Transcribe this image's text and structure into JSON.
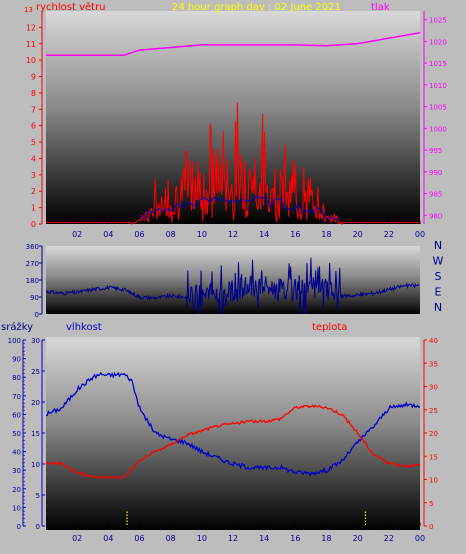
{
  "colors": {
    "background": "#bdbdbd",
    "wind": "#ff0000",
    "gust_avg": "#0000cc",
    "pressure": "#ff00ff",
    "direction": "#00008b",
    "humidity": "#0000cc",
    "temperature": "#ff0000",
    "rain_label": "#00008b",
    "humidity_label": "#0000cc",
    "rain_axis": "#0000cc",
    "yellow": "#ffff00",
    "tick_blue": "#0000aa"
  },
  "chart_data": [
    {
      "type": "line",
      "name_key": "wind_pressure",
      "title": "24 hour graph day : 02 June 2021",
      "left_label": "rychlost větru",
      "right_label": "tlak",
      "x_ticks": [
        "02",
        "04",
        "06",
        "08",
        "10",
        "12",
        "14",
        "16",
        "18",
        "20",
        "22",
        "00"
      ],
      "y_left_ticks": [
        0,
        1,
        2,
        3,
        4,
        5,
        6,
        7,
        8,
        9,
        10,
        11,
        12
      ],
      "y_left_top_tick": "13",
      "y_right_ticks": [
        980,
        985,
        990,
        995,
        1000,
        1005,
        1010,
        1015,
        1020,
        1025
      ],
      "ylim_left": [
        0,
        13
      ],
      "ylim_right": [
        978,
        1027
      ],
      "pressure": {
        "x": [
          0,
          5,
          6,
          10,
          16,
          18,
          20,
          24
        ],
        "y": [
          1016.8,
          1016.8,
          1018,
          1019.2,
          1019.2,
          1019,
          1019.5,
          1022
        ]
      },
      "wind_active_range": [
        5.5,
        19
      ]
    },
    {
      "type": "line",
      "name_key": "direction",
      "y_ticks": [
        0,
        90,
        180,
        270,
        360
      ],
      "compass": [
        "N",
        "W",
        "S",
        "E",
        "N"
      ],
      "ylim": [
        0,
        360
      ],
      "x": [
        0,
        1,
        2,
        3,
        4,
        5,
        6,
        7,
        8,
        9,
        10,
        11,
        12,
        13,
        14,
        15,
        16,
        17,
        18,
        19,
        20,
        21,
        22,
        23,
        24
      ],
      "y": [
        120,
        110,
        115,
        130,
        140,
        130,
        90,
        85,
        95,
        90,
        100,
        110,
        120,
        140,
        150,
        130,
        125,
        140,
        135,
        95,
        100,
        110,
        130,
        150,
        150
      ]
    },
    {
      "type": "line",
      "name_key": "humidity_temp",
      "rain_label": "srážky",
      "humidity_label": "vlhkost",
      "temp_label": "teplota",
      "x_ticks": [
        "02",
        "04",
        "06",
        "08",
        "10",
        "12",
        "14",
        "16",
        "18",
        "20",
        "22",
        "00"
      ],
      "rain_ticks": [
        0,
        10,
        20,
        30,
        40,
        50,
        60,
        70,
        80,
        90,
        100
      ],
      "hum_ticks": [
        0,
        5,
        10,
        15,
        20,
        25,
        30
      ],
      "temp_ticks": [
        0,
        5,
        10,
        15,
        20,
        25,
        30,
        35,
        40
      ],
      "ylim_rain": [
        0,
        100
      ],
      "ylim_hum": [
        0,
        30
      ],
      "ylim_temp": [
        0,
        40
      ],
      "humidity": {
        "x": [
          0,
          1,
          2,
          3,
          3.5,
          4,
          5,
          5.5,
          6,
          7,
          8,
          9,
          10,
          11,
          12,
          13,
          14,
          15,
          16,
          17,
          18,
          19,
          20,
          21,
          22,
          23,
          24
        ],
        "y": [
          18,
          19,
          22,
          24,
          24.5,
          24.3,
          24.5,
          23.5,
          19,
          15,
          14,
          13.5,
          12,
          11,
          10,
          9.5,
          9.3,
          9.5,
          8.7,
          8.5,
          9,
          10.5,
          13.5,
          16,
          19,
          19.5,
          19.5
        ]
      },
      "temperature": {
        "x": [
          0,
          1,
          2,
          3,
          4,
          5,
          6,
          7,
          8,
          9,
          10,
          11,
          12,
          13,
          14,
          15,
          16,
          17,
          18,
          19,
          20,
          21,
          22,
          23,
          24
        ],
        "y": [
          13.5,
          13.5,
          11.5,
          10.5,
          10.5,
          10.5,
          14,
          16,
          17.5,
          19.5,
          20.5,
          21.5,
          22,
          22.5,
          22.5,
          23,
          25.5,
          25.8,
          25.5,
          24,
          20,
          15.5,
          13.5,
          13,
          13
        ]
      },
      "rain_markers_x": [
        5.2,
        20.5
      ]
    }
  ]
}
